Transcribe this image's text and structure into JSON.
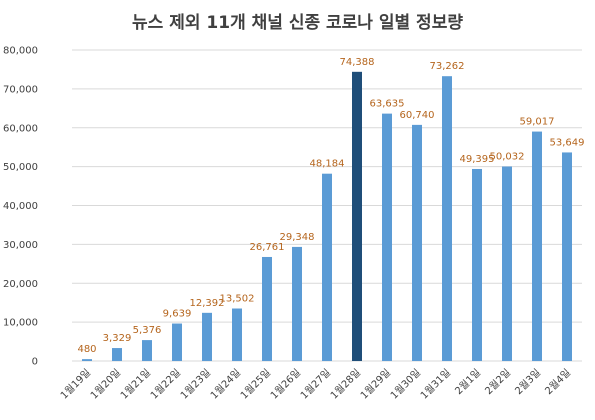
{
  "chart_data": {
    "type": "bar",
    "title": "뉴스 제외 11개 채널 신종 코로나 일별 정보량",
    "xlabel": "",
    "ylabel": "",
    "ylim": [
      0,
      80000
    ],
    "yticks": [
      0,
      10000,
      20000,
      30000,
      40000,
      50000,
      60000,
      70000,
      80000
    ],
    "ytick_labels": [
      "0",
      "10,000",
      "20,000",
      "30,000",
      "40,000",
      "50,000",
      "60,000",
      "70,000",
      "80,000"
    ],
    "grid": true,
    "categories": [
      "1월19일",
      "1월20일",
      "1월21일",
      "1월22일",
      "1월23일",
      "1월24일",
      "1월25일",
      "1월26일",
      "1월27일",
      "1월28일",
      "1월29일",
      "1월30일",
      "1월31일",
      "2월1일",
      "2월2일",
      "2월3일",
      "2월4일"
    ],
    "values": [
      480,
      3329,
      5376,
      9639,
      12392,
      13502,
      26761,
      29348,
      48184,
      74388,
      63635,
      60740,
      73262,
      49395,
      50032,
      59017,
      53649
    ],
    "value_labels": [
      "480",
      "3,329",
      "5,376",
      "9,639",
      "12,392",
      "13,502",
      "26,761",
      "29,348",
      "48,184",
      "74,388",
      "63,635",
      "60,740",
      "73,262",
      "49,395",
      "50,032",
      "59,017",
      "53,649"
    ],
    "highlight_index": 9,
    "colors": {
      "bar": "#5b9bd5",
      "highlight": "#1f4e79",
      "label": "#b5651d",
      "grid": "#d9d9d9"
    }
  }
}
